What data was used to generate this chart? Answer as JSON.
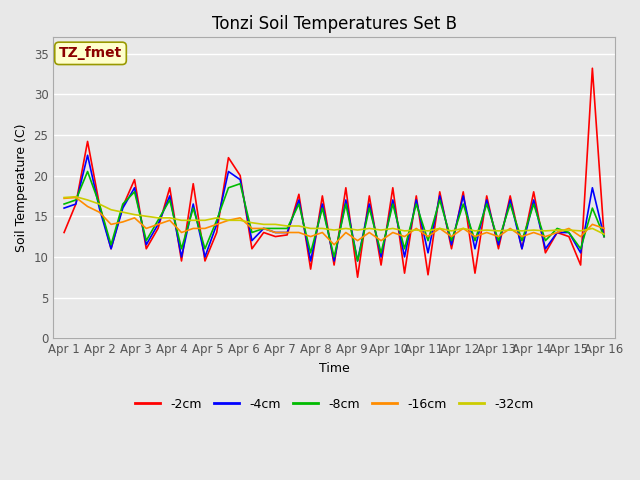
{
  "title": "Tonzi Soil Temperatures Set B",
  "xlabel": "Time",
  "ylabel": "Soil Temperature (C)",
  "annotation_label": "TZ_fmet",
  "annotation_color": "#8B0000",
  "annotation_bg": "#FFFFCC",
  "ylim": [
    0,
    37
  ],
  "yticks": [
    0,
    5,
    10,
    15,
    20,
    25,
    30,
    35
  ],
  "x_labels": [
    "Apr 1",
    "Apr 2",
    "Apr 3",
    "Apr 4",
    "Apr 5",
    "Apr 6",
    "Apr 7",
    "Apr 8",
    "Apr 9",
    "Apr 10",
    "Apr 11",
    "Apr 12",
    "Apr 13",
    "Apr 14",
    "Apr 15",
    "Apr 16"
  ],
  "series": {
    "-2cm": {
      "color": "#FF0000",
      "values": [
        13.0,
        16.5,
        24.2,
        16.5,
        11.0,
        16.2,
        19.5,
        11.0,
        13.5,
        18.5,
        9.5,
        19.0,
        9.5,
        13.0,
        22.2,
        20.0,
        11.0,
        13.0,
        12.5,
        12.7,
        17.7,
        8.5,
        17.5,
        9.0,
        18.5,
        7.5,
        17.5,
        9.0,
        18.5,
        8.0,
        17.5,
        7.8,
        18.0,
        11.0,
        18.0,
        8.0,
        17.5,
        11.0,
        17.5,
        11.0,
        18.0,
        10.5,
        13.0,
        12.5,
        9.0,
        33.2,
        12.5
      ]
    },
    "-4cm": {
      "color": "#0000FF",
      "values": [
        16.0,
        16.5,
        22.5,
        16.0,
        11.0,
        16.0,
        18.5,
        11.5,
        14.0,
        17.5,
        10.0,
        16.5,
        10.0,
        14.0,
        20.5,
        19.5,
        12.0,
        13.5,
        13.0,
        13.0,
        17.0,
        9.5,
        16.5,
        9.5,
        17.0,
        9.5,
        16.5,
        10.0,
        17.0,
        10.0,
        17.0,
        10.5,
        17.5,
        11.5,
        17.5,
        11.0,
        17.0,
        11.5,
        17.0,
        11.0,
        17.0,
        11.0,
        13.0,
        13.0,
        10.5,
        18.5,
        12.5
      ]
    },
    "-8cm": {
      "color": "#00BB00",
      "values": [
        16.5,
        17.0,
        20.5,
        16.5,
        11.5,
        16.5,
        18.0,
        12.0,
        14.5,
        17.0,
        11.0,
        16.0,
        11.0,
        14.5,
        18.5,
        19.0,
        13.0,
        13.5,
        13.5,
        13.5,
        16.5,
        10.5,
        16.0,
        10.0,
        16.5,
        9.5,
        16.0,
        10.5,
        16.5,
        11.0,
        16.5,
        12.0,
        17.0,
        12.0,
        16.5,
        12.0,
        16.5,
        12.0,
        16.5,
        12.0,
        16.5,
        12.0,
        13.5,
        13.0,
        11.0,
        16.0,
        12.5
      ]
    },
    "-16cm": {
      "color": "#FF8C00",
      "values": [
        17.2,
        17.3,
        16.2,
        15.5,
        14.0,
        14.3,
        14.8,
        13.5,
        14.0,
        14.5,
        13.0,
        13.5,
        13.5,
        14.0,
        14.5,
        14.8,
        13.5,
        13.5,
        13.0,
        13.0,
        13.0,
        12.5,
        13.0,
        11.5,
        13.0,
        12.0,
        13.0,
        12.0,
        13.0,
        12.5,
        13.5,
        12.5,
        13.5,
        12.5,
        13.5,
        12.5,
        13.0,
        12.5,
        13.5,
        12.5,
        13.0,
        12.5,
        13.0,
        13.5,
        12.5,
        14.0,
        13.5
      ]
    },
    "-32cm": {
      "color": "#CCCC00",
      "values": [
        17.3,
        17.4,
        17.0,
        16.5,
        15.8,
        15.5,
        15.2,
        15.0,
        14.8,
        14.8,
        14.5,
        14.5,
        14.5,
        14.8,
        14.5,
        14.5,
        14.2,
        14.0,
        14.0,
        13.8,
        13.8,
        13.5,
        13.5,
        13.3,
        13.5,
        13.3,
        13.5,
        13.3,
        13.5,
        13.2,
        13.3,
        13.2,
        13.5,
        13.2,
        13.5,
        13.2,
        13.3,
        13.2,
        13.3,
        13.2,
        13.3,
        13.2,
        13.3,
        13.3,
        13.2,
        13.5,
        12.8
      ]
    }
  },
  "bg_color": "#E8E8E8",
  "plot_bg_color": "#E8E8E8",
  "grid_color": "#FFFFFF",
  "title_fontsize": 12,
  "label_fontsize": 9,
  "tick_fontsize": 8.5
}
